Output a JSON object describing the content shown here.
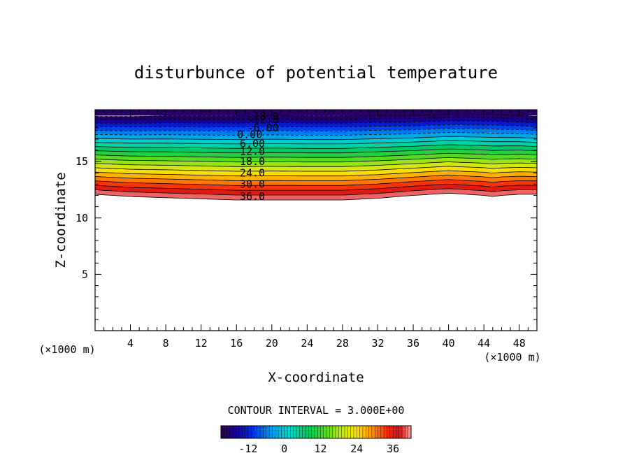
{
  "chart_data": {
    "type": "contour",
    "title": "disturbunce of potential temperature",
    "xlabel": "X-coordinate",
    "ylabel": "Z-coordinate",
    "x_unit": "(×1000 m)",
    "y_unit": "(×1000 m)",
    "xlim": [
      0,
      50
    ],
    "ylim": [
      0,
      19.6
    ],
    "x_ticks": [
      4,
      8,
      12,
      16,
      20,
      24,
      28,
      32,
      36,
      40,
      44,
      48
    ],
    "y_ticks": [
      5,
      10,
      15
    ],
    "contour_interval_text": "CONTOUR INTERVAL = 3.000E+00",
    "contour_interval": 3.0,
    "levels_min": -18,
    "levels_max": 39,
    "negative_contours_dashed": true,
    "contour_labels": [
      {
        "text": "-18.0",
        "x": 19,
        "z": 19.0
      },
      {
        "text": "-12.0",
        "x": 19,
        "z": 18.7
      },
      {
        "text": "-6.00",
        "x": 19,
        "z": 18.0
      },
      {
        "text": "0.00",
        "x": 17.5,
        "z": 17.4
      },
      {
        "text": "6.00",
        "x": 17.8,
        "z": 16.6
      },
      {
        "text": "12.0",
        "x": 17.8,
        "z": 15.9
      },
      {
        "text": "18.0",
        "x": 17.8,
        "z": 15.0
      },
      {
        "text": "24.0",
        "x": 17.8,
        "z": 14.0
      },
      {
        "text": "30.0",
        "x": 17.8,
        "z": 13.0
      },
      {
        "text": "36.0",
        "x": 17.8,
        "z": 11.9
      }
    ],
    "profile_x": [
      0,
      4,
      8,
      12,
      16,
      20,
      24,
      28,
      32,
      36,
      40,
      44,
      45,
      46,
      48,
      50
    ],
    "field_top_z": [
      19.0,
      19.0,
      19.05,
      19.05,
      19.05,
      19.1,
      19.05,
      19.05,
      19.1,
      19.1,
      19.2,
      19.2,
      19.2,
      19.15,
      19.1,
      19.0
    ],
    "field_bottom_z": [
      12.1,
      11.9,
      11.8,
      11.7,
      11.6,
      11.6,
      11.6,
      11.6,
      11.75,
      12.0,
      12.2,
      12.0,
      11.9,
      12.0,
      12.1,
      12.1
    ],
    "colorbar": {
      "tick_labels": [
        "-12",
        "0",
        "12",
        "24",
        "36"
      ],
      "tick_values": [
        -12,
        0,
        12,
        24,
        36
      ],
      "min": -21,
      "max": 42
    }
  }
}
